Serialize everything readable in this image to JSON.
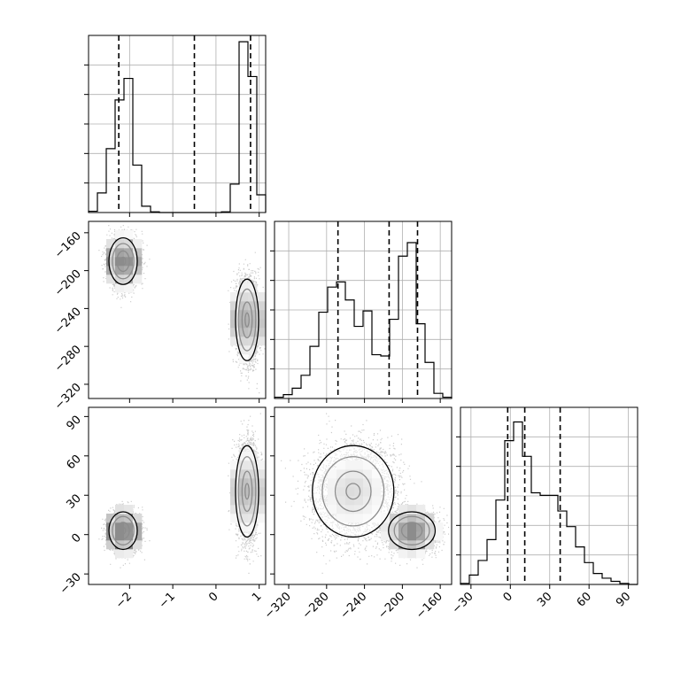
{
  "chart_data": {
    "type": "corner",
    "grid": true,
    "params": [
      {
        "name": "",
        "range": [
          -2.95,
          1.15
        ],
        "ticks": [
          -2,
          -1,
          0,
          1
        ],
        "tick_labels": [
          "−2",
          "−1",
          "0",
          "1"
        ],
        "quantiles": [
          -2.25,
          -0.5,
          0.8
        ]
      },
      {
        "name": "",
        "range": [
          -335,
          -148
        ],
        "ticks": [
          -320,
          -280,
          -240,
          -200,
          -160
        ],
        "tick_labels": [
          "−320",
          "−280",
          "−240",
          "−200",
          "−160"
        ],
        "quantiles": [
          -268,
          -214,
          -184
        ]
      },
      {
        "name": "",
        "range": [
          -38,
          97
        ],
        "ticks": [
          -30,
          0,
          30,
          60,
          90
        ],
        "tick_labels": [
          "−30",
          "0",
          "30",
          "60",
          "90"
        ],
        "quantiles": [
          -2,
          11,
          38
        ]
      }
    ],
    "histograms": [
      {
        "param": 0,
        "bin_edges": [
          -2.95,
          -2.745,
          -2.54,
          -2.335,
          -2.13,
          -1.925,
          -1.72,
          -1.515,
          -1.31,
          -1.105,
          -0.9,
          -0.695,
          -0.49,
          -0.285,
          -0.08,
          0.125,
          0.33,
          0.535,
          0.74,
          0.945,
          1.15
        ],
        "counts": [
          0.2,
          3.1,
          10.1,
          17.8,
          21.2,
          7.5,
          1.0,
          0.1,
          0,
          0,
          0,
          0,
          0,
          0,
          0,
          0.1,
          4.5,
          27,
          21.5,
          2.8
        ],
        "ymax": 28
      },
      {
        "param": 1,
        "bin_edges": [
          -335,
          -325.65,
          -316.3,
          -306.95,
          -297.6,
          -288.25,
          -278.9,
          -269.55,
          -260.2,
          -250.85,
          -241.5,
          -232.15,
          -222.8,
          -213.45,
          -204.1,
          -194.75,
          -185.4,
          -176.05,
          -166.7,
          -157.35,
          -148
        ],
        "counts": [
          0.2,
          0.6,
          1.6,
          3.6,
          8.1,
          13.4,
          17.3,
          18.1,
          15.3,
          11.2,
          13.6,
          6.8,
          6.6,
          12.3,
          22.1,
          24.2,
          11.6,
          5.6,
          0.8,
          0.2
        ],
        "ymax": 27.5
      },
      {
        "param": 2,
        "bin_edges": [
          -38,
          -31.25,
          -24.5,
          -17.75,
          -11,
          -4.25,
          2.5,
          9.25,
          16,
          22.75,
          29.5,
          36.25,
          43,
          49.75,
          56.5,
          63.25,
          70,
          76.75,
          83.5,
          90.25,
          97
        ],
        "counts": [
          0.2,
          1.8,
          4.6,
          8.6,
          16.2,
          27.6,
          31.2,
          24.6,
          17.6,
          17.1,
          17.1,
          14.1,
          11.1,
          7.2,
          4.2,
          2.1,
          1.2,
          0.6,
          0.2,
          0
        ],
        "ymax": 34
      }
    ],
    "joint_components": [
      {
        "w": 0.5,
        "mean": [
          -2.15,
          -190,
          3
        ],
        "sd": [
          0.16,
          12,
          7
        ]
      },
      {
        "w": 0.5,
        "mean": [
          0.72,
          -252,
          33
        ],
        "sd": [
          0.13,
          21,
          17
        ]
      }
    ]
  }
}
